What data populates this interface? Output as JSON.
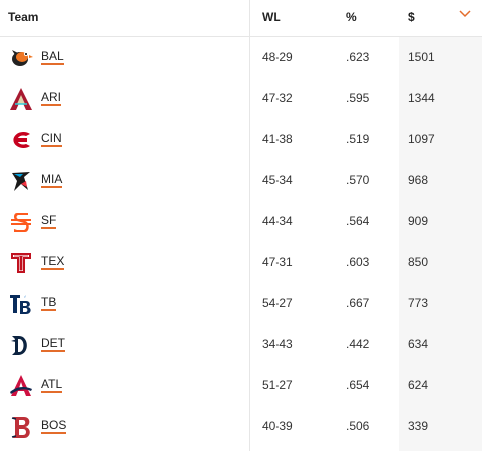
{
  "header": {
    "team_label": "Team",
    "wl_label": "WL",
    "pct_label": "%",
    "usd_label": "$",
    "sort_icon": "chevron-down-icon",
    "accent_color": "#e36c2b"
  },
  "rows": [
    {
      "team": "BAL",
      "wl": "48-29",
      "pct": ".623",
      "usd": "1501",
      "logo": "orioles-logo-icon"
    },
    {
      "team": "ARI",
      "wl": "47-32",
      "pct": ".595",
      "usd": "1344",
      "logo": "diamondbacks-logo-icon"
    },
    {
      "team": "CIN",
      "wl": "41-38",
      "pct": ".519",
      "usd": "1097",
      "logo": "reds-logo-icon"
    },
    {
      "team": "MIA",
      "wl": "45-34",
      "pct": ".570",
      "usd": "968",
      "logo": "marlins-logo-icon"
    },
    {
      "team": "SF",
      "wl": "44-34",
      "pct": ".564",
      "usd": "909",
      "logo": "giants-logo-icon"
    },
    {
      "team": "TEX",
      "wl": "47-31",
      "pct": ".603",
      "usd": "850",
      "logo": "rangers-logo-icon"
    },
    {
      "team": "TB",
      "wl": "54-27",
      "pct": ".667",
      "usd": "773",
      "logo": "rays-logo-icon"
    },
    {
      "team": "DET",
      "wl": "34-43",
      "pct": ".442",
      "usd": "634",
      "logo": "tigers-logo-icon"
    },
    {
      "team": "ATL",
      "wl": "51-27",
      "pct": ".654",
      "usd": "624",
      "logo": "braves-logo-icon"
    },
    {
      "team": "BOS",
      "wl": "40-39",
      "pct": ".506",
      "usd": "339",
      "logo": "red-sox-logo-icon"
    }
  ]
}
